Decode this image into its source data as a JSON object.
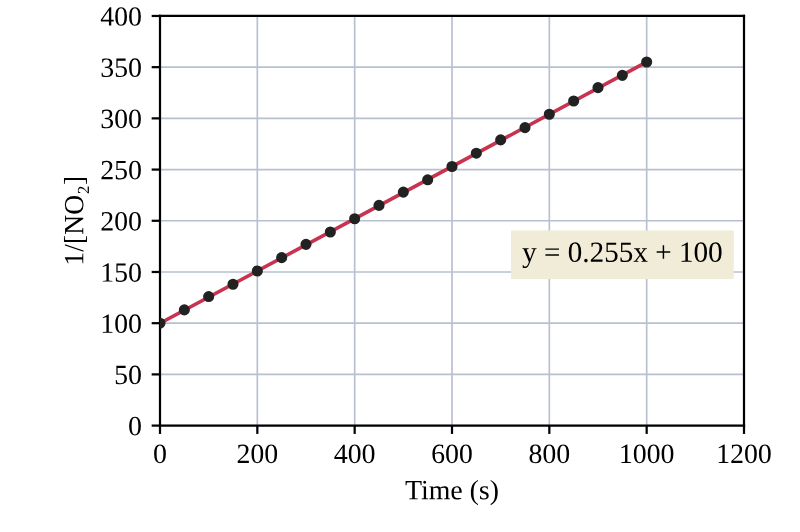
{
  "chart_data": {
    "type": "scatter",
    "xlabel": "Time (s)",
    "ylabel": "1/[NO₂]",
    "x": [
      0,
      50,
      100,
      150,
      200,
      250,
      300,
      350,
      400,
      450,
      500,
      550,
      600,
      650,
      700,
      750,
      800,
      850,
      900,
      950,
      1000
    ],
    "series": [
      {
        "type": "line",
        "color": "#c8334f",
        "x": [
          0,
          1000
        ],
        "values": [
          100,
          355
        ],
        "marker": "none"
      },
      {
        "color": "#222222",
        "marker": "circle",
        "values": [
          100,
          113,
          126,
          138,
          151,
          164,
          177,
          189,
          202,
          215,
          228,
          240,
          253,
          266,
          279,
          291,
          304,
          317,
          330,
          342,
          355
        ]
      }
    ],
    "annotations": [
      "y = 0.255x + 100"
    ],
    "xlim": [
      0,
      1200
    ],
    "xticks": [
      0,
      200,
      400,
      600,
      800,
      1000,
      1200
    ],
    "ylim": [
      0,
      400
    ],
    "yticks": [
      0,
      50,
      100,
      150,
      200,
      250,
      300,
      350,
      400
    ],
    "grid": true
  }
}
